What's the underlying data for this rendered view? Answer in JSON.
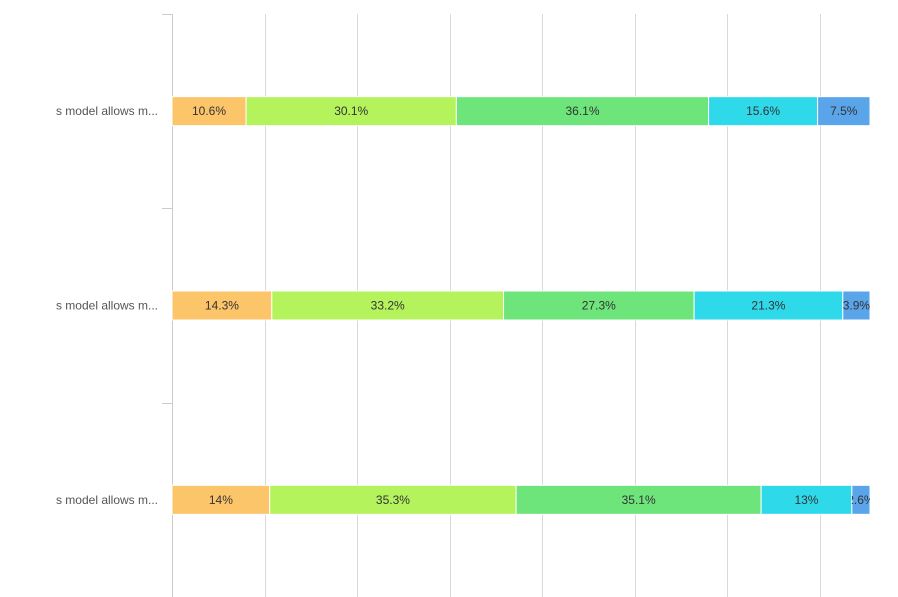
{
  "chart_data": {
    "type": "bar",
    "orientation": "horizontal",
    "stacked": "percent",
    "categories": [
      "s model allows m...",
      "s model allows m...",
      "s model allows m..."
    ],
    "series": [
      {
        "values": [
          10.6,
          14.3,
          14.0
        ],
        "color": "#fdc56a"
      },
      {
        "values": [
          30.1,
          33.2,
          35.3
        ],
        "color": "#b4f35c"
      },
      {
        "values": [
          36.1,
          27.3,
          35.1
        ],
        "color": "#6de57b"
      },
      {
        "values": [
          15.6,
          21.3,
          13.0
        ],
        "color": "#2ed9ea"
      },
      {
        "values": [
          7.5,
          3.9,
          2.6
        ],
        "color": "#5aa5ea"
      }
    ],
    "value_labels": [
      [
        "10.6%",
        "30.1%",
        "36.1%",
        "15.6%",
        "7.5%"
      ],
      [
        "14.3%",
        "33.2%",
        "27.3%",
        "21.3%",
        "3.9%"
      ],
      [
        "14%",
        "35.3%",
        "35.1%",
        "13%",
        "2.6%"
      ]
    ],
    "xlim": [
      0,
      100
    ],
    "grid": true,
    "legend": "none"
  }
}
